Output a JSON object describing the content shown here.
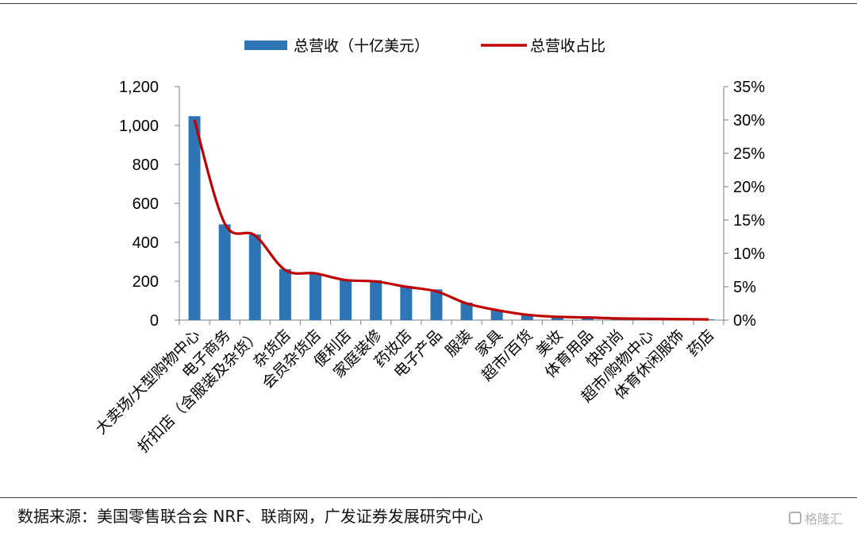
{
  "chart_data": {
    "type": "bar",
    "categories": [
      "大卖场/大型购物中心",
      "电子商务",
      "折扣店（含服装及杂货）",
      "杂货店",
      "会员杂货店",
      "便利店",
      "家庭装修",
      "药妆店",
      "电子产品",
      "服装",
      "家具",
      "超市/百货",
      "美妆",
      "体育用品",
      "快时尚",
      "超市/购物中心",
      "体育休闲服饰",
      "药店"
    ],
    "series": [
      {
        "name": "总营收（十亿美元）",
        "type": "bar",
        "axis": "left",
        "color": "#2e75b6",
        "values": [
          1048,
          492,
          440,
          262,
          240,
          210,
          205,
          175,
          158,
          90,
          52,
          28,
          16,
          14,
          8,
          6,
          5,
          4
        ]
      },
      {
        "name": "总营收占比",
        "type": "line",
        "axis": "right",
        "color": "#c00000",
        "values": [
          30.0,
          14.5,
          12.7,
          7.5,
          7.0,
          6.0,
          5.8,
          5.0,
          4.3,
          2.5,
          1.5,
          0.8,
          0.5,
          0.4,
          0.25,
          0.2,
          0.15,
          0.1
        ]
      }
    ],
    "y_left": {
      "min": 0,
      "max": 1200,
      "ticks": [
        0,
        200,
        400,
        600,
        800,
        1000,
        1200
      ],
      "tick_labels": [
        "0",
        "200",
        "400",
        "600",
        "800",
        "1,000",
        "1,200"
      ]
    },
    "y_right": {
      "min": 0,
      "max": 35,
      "ticks": [
        0,
        5,
        10,
        15,
        20,
        25,
        30,
        35
      ],
      "tick_labels": [
        "0%",
        "5%",
        "10%",
        "15%",
        "20%",
        "25%",
        "30%",
        "35%"
      ]
    },
    "grid": false,
    "legend": "top-center"
  },
  "source": "数据来源：美国零售联合会 NRF、联商网，广发证券发展研究中心",
  "watermark": "格隆汇"
}
